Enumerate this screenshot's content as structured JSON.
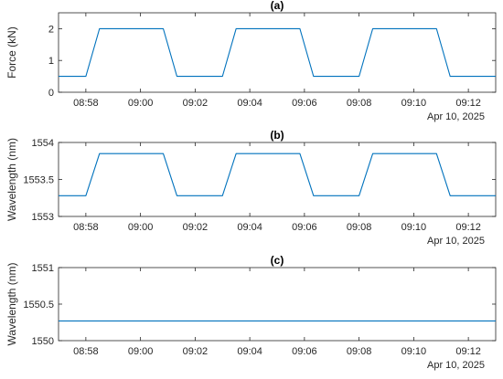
{
  "chart_data": [
    {
      "type": "line",
      "title": "(a)",
      "xlabel": "",
      "ylabel": "Force (kN)",
      "date_label": "Apr 10, 2025",
      "xticks": [
        "08:58",
        "09:00",
        "09:02",
        "09:04",
        "09:06",
        "09:08",
        "09:10",
        "09:12"
      ],
      "xlim": [
        "08:57:00",
        "09:13:00"
      ],
      "ylim": [
        0,
        2.5
      ],
      "yticks": [
        "0",
        "1",
        "2"
      ],
      "ytick_values": [
        0,
        1,
        2
      ],
      "series": [
        {
          "color": "#0072BD",
          "x": [
            "08:57:00",
            "08:58:00",
            "08:58:30",
            "09:00:50",
            "09:01:20",
            "09:03:00",
            "09:03:30",
            "09:05:50",
            "09:06:20",
            "09:08:00",
            "09:08:30",
            "09:10:50",
            "09:11:20",
            "09:13:00"
          ],
          "y": [
            0.5,
            0.5,
            2.0,
            2.0,
            0.5,
            0.5,
            2.0,
            2.0,
            0.5,
            0.5,
            2.0,
            2.0,
            0.5,
            0.5
          ]
        }
      ]
    },
    {
      "type": "line",
      "title": "(b)",
      "xlabel": "",
      "ylabel": "Wavelength (nm)",
      "date_label": "Apr 10, 2025",
      "xticks": [
        "08:58",
        "09:00",
        "09:02",
        "09:04",
        "09:06",
        "09:08",
        "09:10",
        "09:12"
      ],
      "xlim": [
        "08:57:00",
        "09:13:00"
      ],
      "ylim": [
        1553,
        1554
      ],
      "yticks": [
        "1553",
        "1553.5",
        "1554"
      ],
      "ytick_values": [
        1553,
        1553.5,
        1554
      ],
      "series": [
        {
          "color": "#0072BD",
          "x": [
            "08:57:00",
            "08:58:00",
            "08:58:30",
            "09:00:50",
            "09:01:20",
            "09:03:00",
            "09:03:30",
            "09:05:50",
            "09:06:20",
            "09:08:00",
            "09:08:30",
            "09:10:50",
            "09:11:20",
            "09:13:00"
          ],
          "y": [
            1553.28,
            1553.28,
            1553.85,
            1553.85,
            1553.28,
            1553.28,
            1553.85,
            1553.85,
            1553.28,
            1553.28,
            1553.85,
            1553.85,
            1553.28,
            1553.28
          ]
        }
      ]
    },
    {
      "type": "line",
      "title": "(c)",
      "xlabel": "",
      "ylabel": "Wavelength (nm)",
      "date_label": "Apr 10, 2025",
      "xticks": [
        "08:58",
        "09:00",
        "09:02",
        "09:04",
        "09:06",
        "09:08",
        "09:10",
        "09:12"
      ],
      "xlim": [
        "08:57:00",
        "09:13:00"
      ],
      "ylim": [
        1550,
        1551
      ],
      "yticks": [
        "1550",
        "1550.5",
        "1551"
      ],
      "ytick_values": [
        1550,
        1550.5,
        1551
      ],
      "series": [
        {
          "color": "#0072BD",
          "x": [
            "08:57:00",
            "09:13:00"
          ],
          "y": [
            1550.27,
            1550.27
          ]
        }
      ]
    }
  ]
}
